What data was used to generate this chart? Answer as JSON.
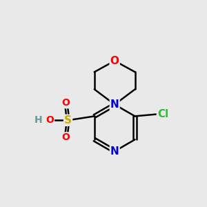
{
  "background_color": "#e9e9e9",
  "colors": {
    "C": "#000000",
    "N": "#0000cc",
    "O": "#ff0000",
    "S": "#ccaa00",
    "Cl": "#33bb33",
    "H": "#669999",
    "bond": "#000000"
  }
}
